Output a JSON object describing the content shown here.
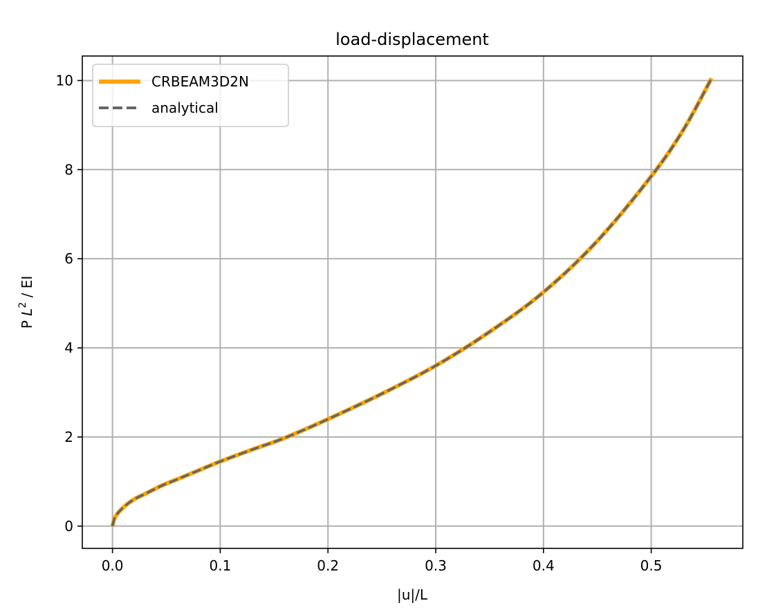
{
  "chart_data": {
    "type": "line",
    "title": "load-displacement",
    "xlabel": "|u|/L",
    "ylabel_prefix": "P ",
    "ylabel_var": "L",
    "ylabel_sup": "2",
    "ylabel_suffix": " / EI",
    "xlim": [
      -0.028,
      0.585
    ],
    "ylim": [
      -0.5,
      10.55
    ],
    "xticks": [
      0.0,
      0.1,
      0.2,
      0.3,
      0.4,
      0.5
    ],
    "xtick_labels": [
      "0.0",
      "0.1",
      "0.2",
      "0.3",
      "0.4",
      "0.5"
    ],
    "yticks": [
      0,
      2,
      4,
      6,
      8,
      10
    ],
    "ytick_labels": [
      "0",
      "2",
      "4",
      "6",
      "8",
      "10"
    ],
    "grid": true,
    "legend_position": "upper-left",
    "series": [
      {
        "name": "CRBEAM3D2N",
        "color": "#ffa500",
        "style": "solid",
        "x": [
          0.0,
          0.002,
          0.006,
          0.012,
          0.02,
          0.03,
          0.045,
          0.06,
          0.08,
          0.1,
          0.13,
          0.16,
          0.2,
          0.25,
          0.3,
          0.35,
          0.4,
          0.45,
          0.5,
          0.53,
          0.556
        ],
        "y": [
          0.0,
          0.18,
          0.32,
          0.46,
          0.6,
          0.72,
          0.9,
          1.05,
          1.25,
          1.45,
          1.72,
          1.98,
          2.4,
          2.97,
          3.6,
          4.36,
          5.25,
          6.4,
          7.85,
          8.9,
          10.05
        ]
      },
      {
        "name": "analytical",
        "color": "#666666",
        "style": "dashed",
        "x": [
          0.0,
          0.002,
          0.006,
          0.012,
          0.02,
          0.03,
          0.045,
          0.06,
          0.08,
          0.1,
          0.13,
          0.16,
          0.2,
          0.25,
          0.3,
          0.35,
          0.4,
          0.45,
          0.5,
          0.53,
          0.556
        ],
        "y": [
          0.0,
          0.18,
          0.32,
          0.46,
          0.6,
          0.72,
          0.9,
          1.05,
          1.25,
          1.45,
          1.72,
          1.98,
          2.4,
          2.97,
          3.6,
          4.36,
          5.25,
          6.4,
          7.85,
          8.9,
          10.05
        ]
      }
    ]
  }
}
